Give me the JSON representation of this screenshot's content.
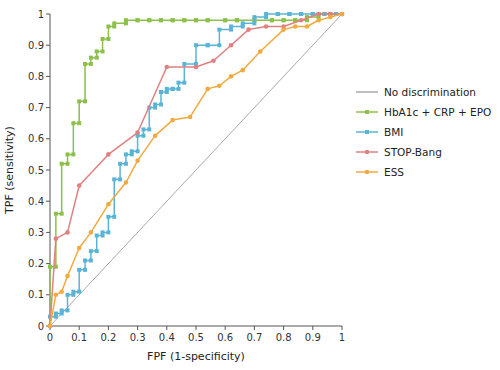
{
  "chart_data": {
    "type": "line",
    "xlabel": "FPF (1-specificity)",
    "ylabel": "TPF (sensitivity)",
    "xlim": [
      0,
      1
    ],
    "ylim": [
      0,
      1
    ],
    "xticks": [
      0,
      0.1,
      0.2,
      0.3,
      0.4,
      0.5,
      0.6,
      0.7,
      0.8,
      0.9,
      1
    ],
    "yticks": [
      0,
      0.1,
      0.2,
      0.3,
      0.4,
      0.5,
      0.6,
      0.7,
      0.8,
      0.9,
      1
    ],
    "grid": false,
    "legend": "right",
    "series": [
      {
        "name": "No discrimination",
        "color": "#aaaaaa",
        "x": [
          0,
          1
        ],
        "values": [
          0,
          1
        ]
      },
      {
        "name": "HbA1c + CRP + EPO",
        "color": "#8dc04a",
        "marker": "square",
        "x": [
          0.0,
          0.0,
          0.02,
          0.02,
          0.04,
          0.04,
          0.06,
          0.06,
          0.08,
          0.08,
          0.1,
          0.1,
          0.12,
          0.12,
          0.14,
          0.14,
          0.16,
          0.16,
          0.18,
          0.18,
          0.2,
          0.2,
          0.22,
          0.22,
          0.26,
          0.26,
          0.3,
          0.3,
          0.34,
          0.34,
          0.38,
          0.38,
          0.42,
          0.42,
          0.46,
          0.46,
          0.5,
          0.5,
          0.54,
          0.54,
          0.6,
          0.6,
          0.64,
          0.64,
          0.7,
          0.7,
          0.76,
          0.76,
          0.8,
          0.8,
          0.84,
          0.84,
          0.88,
          0.88,
          0.92,
          0.92,
          0.96,
          0.96,
          1.0
        ],
        "values": [
          0.0,
          0.19,
          0.19,
          0.36,
          0.36,
          0.52,
          0.52,
          0.55,
          0.55,
          0.65,
          0.65,
          0.72,
          0.72,
          0.84,
          0.84,
          0.86,
          0.86,
          0.88,
          0.88,
          0.92,
          0.92,
          0.96,
          0.96,
          0.97,
          0.97,
          0.98,
          0.98,
          0.98,
          0.98,
          0.98,
          0.98,
          0.98,
          0.98,
          0.98,
          0.98,
          0.98,
          0.98,
          0.98,
          0.98,
          0.98,
          0.98,
          0.98,
          0.98,
          0.98,
          0.98,
          0.98,
          0.98,
          0.98,
          0.98,
          0.98,
          0.98,
          0.98,
          0.98,
          0.99,
          0.99,
          1.0,
          1.0,
          1.0,
          1.0
        ]
      },
      {
        "name": "BMI",
        "color": "#5ab4d6",
        "marker": "square",
        "x": [
          0.0,
          0.0,
          0.02,
          0.02,
          0.04,
          0.04,
          0.06,
          0.06,
          0.08,
          0.08,
          0.1,
          0.1,
          0.12,
          0.12,
          0.14,
          0.14,
          0.16,
          0.16,
          0.18,
          0.18,
          0.2,
          0.2,
          0.22,
          0.22,
          0.24,
          0.24,
          0.26,
          0.26,
          0.28,
          0.28,
          0.3,
          0.3,
          0.32,
          0.32,
          0.34,
          0.34,
          0.36,
          0.36,
          0.38,
          0.38,
          0.4,
          0.4,
          0.42,
          0.42,
          0.44,
          0.44,
          0.46,
          0.46,
          0.5,
          0.5,
          0.54,
          0.54,
          0.58,
          0.58,
          0.62,
          0.62,
          0.66,
          0.66,
          0.7,
          0.7,
          0.74,
          0.74,
          0.78,
          0.78,
          0.82,
          0.82,
          0.86,
          0.86,
          0.9,
          0.9,
          0.94,
          0.94,
          0.98,
          0.98,
          1.0,
          1.0
        ],
        "values": [
          0.0,
          0.03,
          0.03,
          0.04,
          0.04,
          0.05,
          0.05,
          0.1,
          0.1,
          0.11,
          0.11,
          0.18,
          0.18,
          0.21,
          0.21,
          0.24,
          0.24,
          0.29,
          0.29,
          0.3,
          0.3,
          0.35,
          0.35,
          0.47,
          0.47,
          0.52,
          0.52,
          0.55,
          0.55,
          0.56,
          0.56,
          0.61,
          0.61,
          0.63,
          0.63,
          0.7,
          0.7,
          0.71,
          0.71,
          0.75,
          0.75,
          0.76,
          0.76,
          0.76,
          0.76,
          0.78,
          0.78,
          0.84,
          0.84,
          0.9,
          0.9,
          0.9,
          0.9,
          0.95,
          0.95,
          0.96,
          0.96,
          0.97,
          0.97,
          0.99,
          0.99,
          1.0,
          1.0,
          1.0,
          1.0,
          1.0,
          1.0,
          1.0,
          1.0,
          1.0,
          1.0,
          1.0,
          1.0,
          1.0,
          1.0,
          1.0
        ]
      },
      {
        "name": "STOP-Bang",
        "color": "#e08080",
        "marker": "circle",
        "x": [
          0.0,
          0.02,
          0.06,
          0.1,
          0.2,
          0.3,
          0.4,
          0.5,
          0.56,
          0.62,
          0.68,
          0.74,
          0.8,
          0.86,
          0.92,
          0.96,
          1.0
        ],
        "values": [
          0.0,
          0.28,
          0.3,
          0.45,
          0.55,
          0.62,
          0.83,
          0.83,
          0.85,
          0.9,
          0.95,
          0.96,
          0.96,
          0.98,
          1.0,
          1.0,
          1.0
        ]
      },
      {
        "name": "ESS",
        "color": "#f0aa40",
        "marker": "circle",
        "x": [
          0.0,
          0.02,
          0.04,
          0.06,
          0.1,
          0.14,
          0.2,
          0.26,
          0.3,
          0.36,
          0.42,
          0.48,
          0.54,
          0.58,
          0.62,
          0.66,
          0.72,
          0.8,
          0.84,
          0.88,
          0.92,
          0.96,
          1.0
        ],
        "values": [
          0.0,
          0.1,
          0.11,
          0.16,
          0.25,
          0.3,
          0.39,
          0.46,
          0.53,
          0.61,
          0.66,
          0.67,
          0.76,
          0.77,
          0.8,
          0.82,
          0.88,
          0.95,
          0.96,
          0.96,
          0.98,
          0.99,
          1.0
        ]
      }
    ]
  }
}
